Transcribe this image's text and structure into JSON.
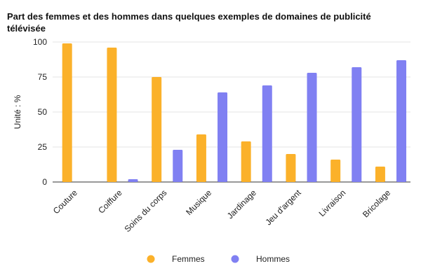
{
  "chart_data": {
    "type": "bar",
    "title": "Part des femmes et des hommes dans quelques exemples de domaines de publicité télévisée",
    "xlabel": "",
    "ylabel": "Unité : %",
    "ylim": [
      0,
      100
    ],
    "yticks": [
      "0",
      "25",
      "50",
      "75",
      "100"
    ],
    "grid": true,
    "legend_position": "bottom",
    "categories": [
      "Couture",
      "Coiffure",
      "Soins du corps",
      "Musique",
      "Jardinage",
      "Jeu d'argent",
      "Livraison",
      "Bricolage"
    ],
    "series": [
      {
        "name": "Femmes",
        "color": "#FBB12A",
        "values": [
          99,
          96,
          75,
          34,
          29,
          20,
          16,
          11
        ]
      },
      {
        "name": "Hommes",
        "color": "#8080F2",
        "values": [
          0,
          2,
          23,
          64,
          69,
          78,
          82,
          87
        ]
      }
    ]
  }
}
